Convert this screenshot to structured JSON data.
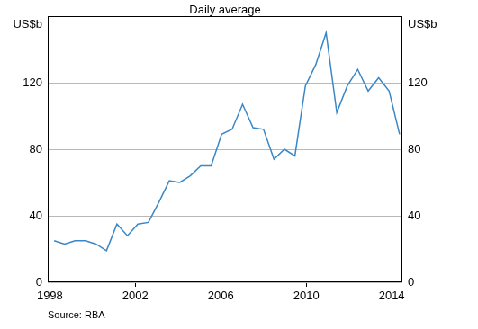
{
  "chart_data": {
    "type": "line",
    "subtitle": "Daily average",
    "y_label": "US$b",
    "y2_label": "US$b",
    "source": "Source: RBA",
    "x": [
      1998.2,
      1998.69,
      1999.18,
      1999.67,
      2000.16,
      2000.65,
      2001.14,
      2001.63,
      2002.12,
      2002.61,
      2003.1,
      2003.59,
      2004.08,
      2004.57,
      2005.06,
      2005.55,
      2006.04,
      2006.53,
      2007.02,
      2007.51,
      2008.0,
      2008.49,
      2008.98,
      2009.47,
      2009.96,
      2010.45,
      2010.93,
      2011.43,
      2011.92,
      2012.41,
      2012.9,
      2013.39,
      2013.88,
      2014.37
    ],
    "values": [
      25,
      23,
      25,
      25,
      23,
      19,
      35,
      28,
      35,
      36,
      48,
      61,
      60,
      64,
      70,
      70,
      89,
      92,
      107,
      93,
      92,
      74,
      80,
      76,
      118,
      131,
      150,
      102,
      118,
      128,
      115,
      123,
      115,
      89
    ],
    "color": "#3a87c8",
    "xlim": [
      1997.9,
      2014.5
    ],
    "xticks": [
      1998,
      2002,
      2006,
      2010,
      2014
    ],
    "ylim": [
      0,
      160
    ],
    "yticks": [
      0,
      40,
      80,
      120
    ],
    "y2lim": [
      0,
      160
    ],
    "y2ticks": [
      0,
      40,
      80,
      120
    ],
    "grid": true
  }
}
